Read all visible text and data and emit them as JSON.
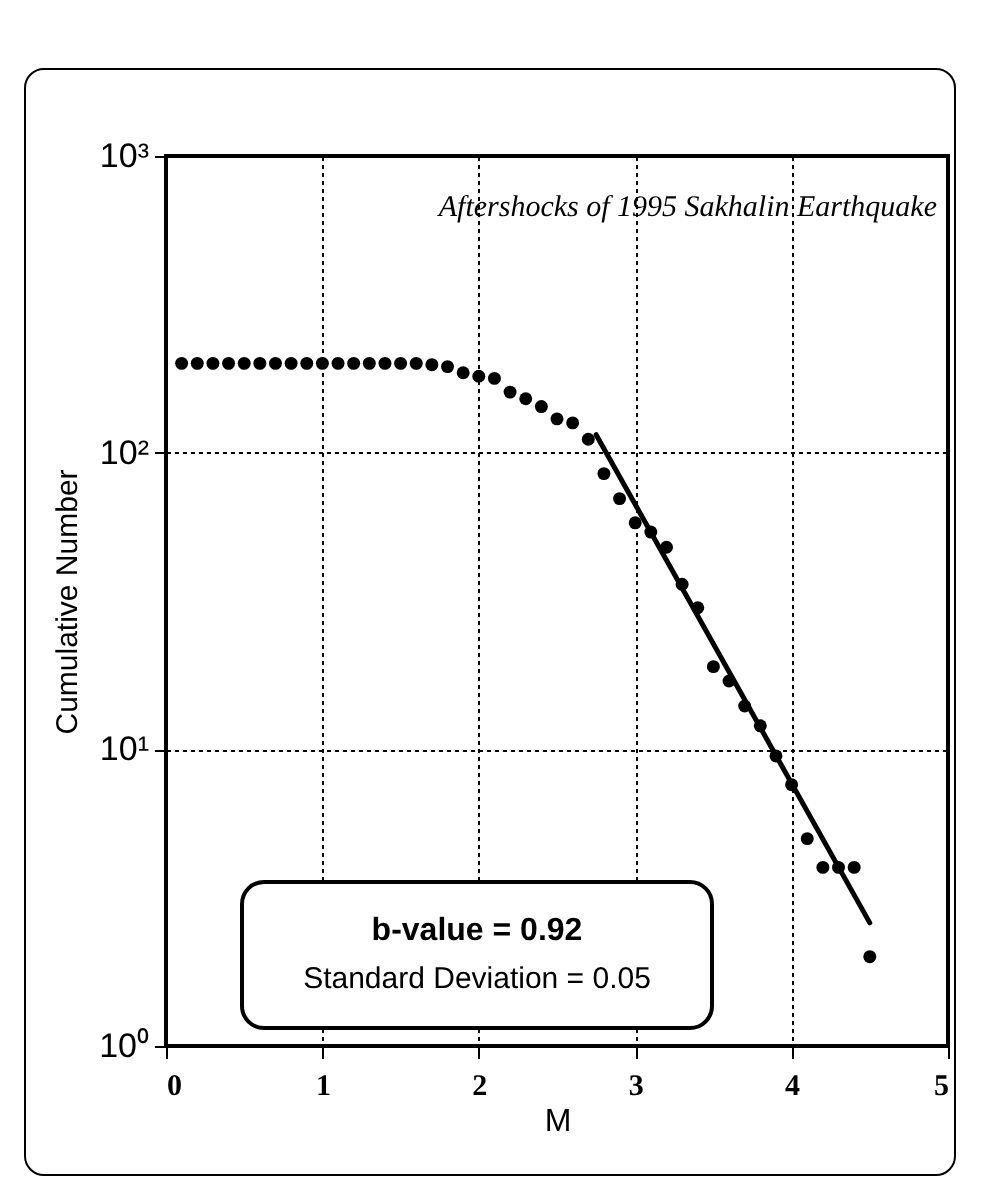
{
  "chart_data": {
    "type": "scatter",
    "title": "Aftershocks of 1995 Sakhalin Earthquake",
    "xlabel": "M",
    "ylabel": "Cumulative Number",
    "annotations": [
      "b-value = 0.92",
      "Standard Deviation = 0.05"
    ],
    "log": "y",
    "grid": true,
    "marker": "circle",
    "xlim": [
      0,
      5
    ],
    "xticks": [
      0,
      1,
      2,
      3,
      4,
      5
    ],
    "ylim": [
      1,
      1000
    ],
    "yticks": [
      {
        "value": 1,
        "label": "10⁰"
      },
      {
        "value": 10,
        "label": "10¹"
      },
      {
        "value": 100,
        "label": "10²"
      },
      {
        "value": 1000,
        "label": "10³"
      }
    ],
    "series": [
      {
        "color": "#000000",
        "x": [
          0.1,
          0.2,
          0.3,
          0.4,
          0.5,
          0.6,
          0.7,
          0.8,
          0.9,
          1.0,
          1.1,
          1.2,
          1.3,
          1.4,
          1.5,
          1.6,
          1.7,
          1.8,
          1.9,
          2.0,
          2.1,
          2.2,
          2.3,
          2.4,
          2.5,
          2.6,
          2.7,
          2.8,
          2.9,
          3.0,
          3.1,
          3.2,
          3.3,
          3.4,
          3.5,
          3.6,
          3.7,
          3.8,
          3.9,
          4.0,
          4.1,
          4.2,
          4.3,
          4.4,
          4.5
        ],
        "values": [
          200,
          200,
          200,
          200,
          200,
          200,
          200,
          200,
          200,
          200,
          200,
          200,
          200,
          200,
          200,
          200,
          198,
          195,
          186,
          181,
          178,
          160,
          152,
          143,
          130,
          126,
          111,
          85,
          70,
          58,
          54,
          48,
          36,
          30,
          19,
          17,
          14,
          12,
          9.5,
          7.6,
          5,
          4,
          4,
          4,
          2
        ]
      },
      {
        "type": "line",
        "marker": "none",
        "color": "#000000",
        "x": [
          2.75,
          4.5
        ],
        "values": [
          115,
          2.6
        ]
      }
    ]
  }
}
